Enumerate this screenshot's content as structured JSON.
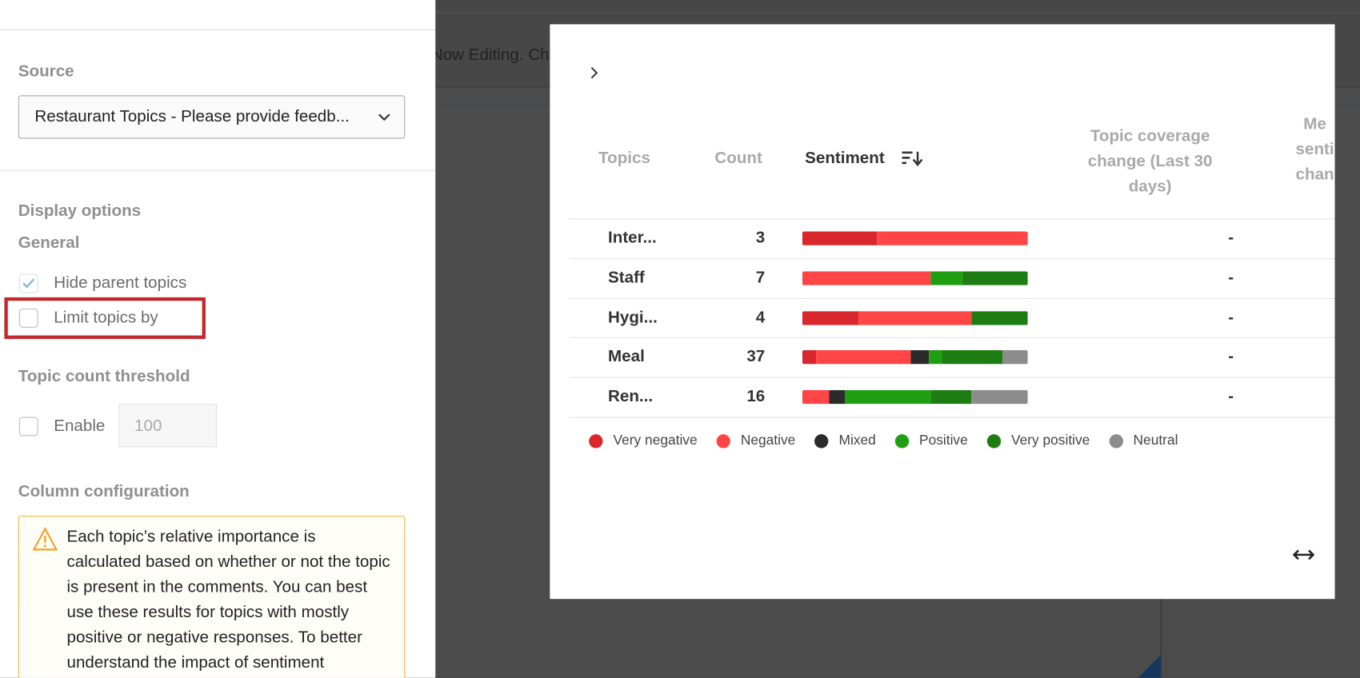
{
  "background": {
    "editing_text": "Now Editing. Ch"
  },
  "panel": {
    "source_label": "Source",
    "source_value": "Restaurant Topics - Please provide feedb...",
    "display_options": "Display options",
    "general": "General",
    "hide_parent_topics": "Hide parent topics",
    "limit_topics_by": "Limit topics by",
    "topic_count_threshold": "Topic count threshold",
    "enable": "Enable",
    "threshold_placeholder": "100",
    "column_configuration": "Column configuration",
    "warning": "Each topic’s relative importance is calculated based on whether or not the topic is present in the comments. You can best use these results for topics with mostly positive or negative responses. To better understand the impact of sentiment"
  },
  "table": {
    "headers": {
      "topics": "Topics",
      "count": "Count",
      "sentiment": "Sentiment",
      "coverage": "Topic coverage change (Last 30 days)",
      "mean_sentiment": [
        "Me",
        "senti",
        "chan"
      ]
    },
    "legend": [
      {
        "name": "Very negative",
        "color": "#d9272e"
      },
      {
        "name": "Negative",
        "color": "#ff4545"
      },
      {
        "name": "Mixed",
        "color": "#2b2b2b"
      },
      {
        "name": "Positive",
        "color": "#1f9e12"
      },
      {
        "name": "Very positive",
        "color": "#1e7d12"
      },
      {
        "name": "Neutral",
        "color": "#8c8c8c"
      }
    ],
    "rows": [
      {
        "topic": "Inter...",
        "count": "3",
        "sentiment": [
          33,
          67,
          0,
          0,
          0,
          0
        ],
        "coverage": "-"
      },
      {
        "topic": "Staff",
        "count": "7",
        "sentiment": [
          0,
          57,
          0,
          14,
          29,
          0
        ],
        "coverage": "-"
      },
      {
        "topic": "Hygi...",
        "count": "4",
        "sentiment": [
          25,
          50,
          0,
          0,
          25,
          0
        ],
        "coverage": "-"
      },
      {
        "topic": "Meal",
        "count": "37",
        "sentiment": [
          6,
          42,
          8,
          6,
          27,
          11
        ],
        "coverage": "-"
      },
      {
        "topic": "Ren...",
        "count": "16",
        "sentiment": [
          0,
          12,
          7,
          38,
          18,
          25
        ],
        "coverage": "-"
      }
    ]
  }
}
